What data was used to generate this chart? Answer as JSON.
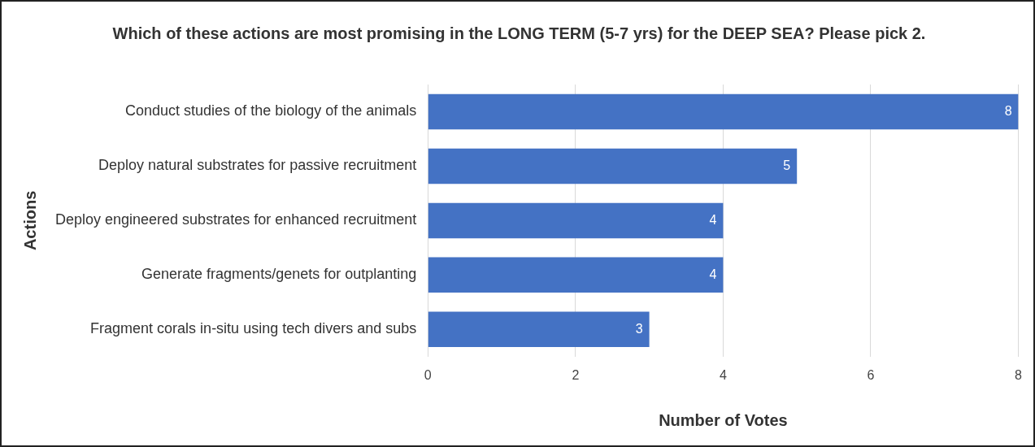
{
  "chart_data": {
    "type": "bar",
    "orientation": "horizontal",
    "title": "Which of these actions are most promising in the LONG TERM (5-7 yrs) for the DEEP SEA? Please pick 2.",
    "xlabel": "Number of Votes",
    "ylabel": "Actions",
    "categories": [
      "Conduct studies of the biology of the animals",
      "Deploy natural substrates for passive recruitment",
      "Deploy engineered substrates for enhanced recruitment",
      "Generate fragments/genets for outplanting",
      "Fragment corals in-situ using tech divers and subs"
    ],
    "values": [
      8,
      5,
      4,
      4,
      3
    ],
    "color": "#4472c4",
    "xlim": [
      0,
      8
    ],
    "xticks": [
      0,
      2,
      4,
      6,
      8
    ],
    "grid": "x",
    "data_labels": true,
    "legend": false
  }
}
